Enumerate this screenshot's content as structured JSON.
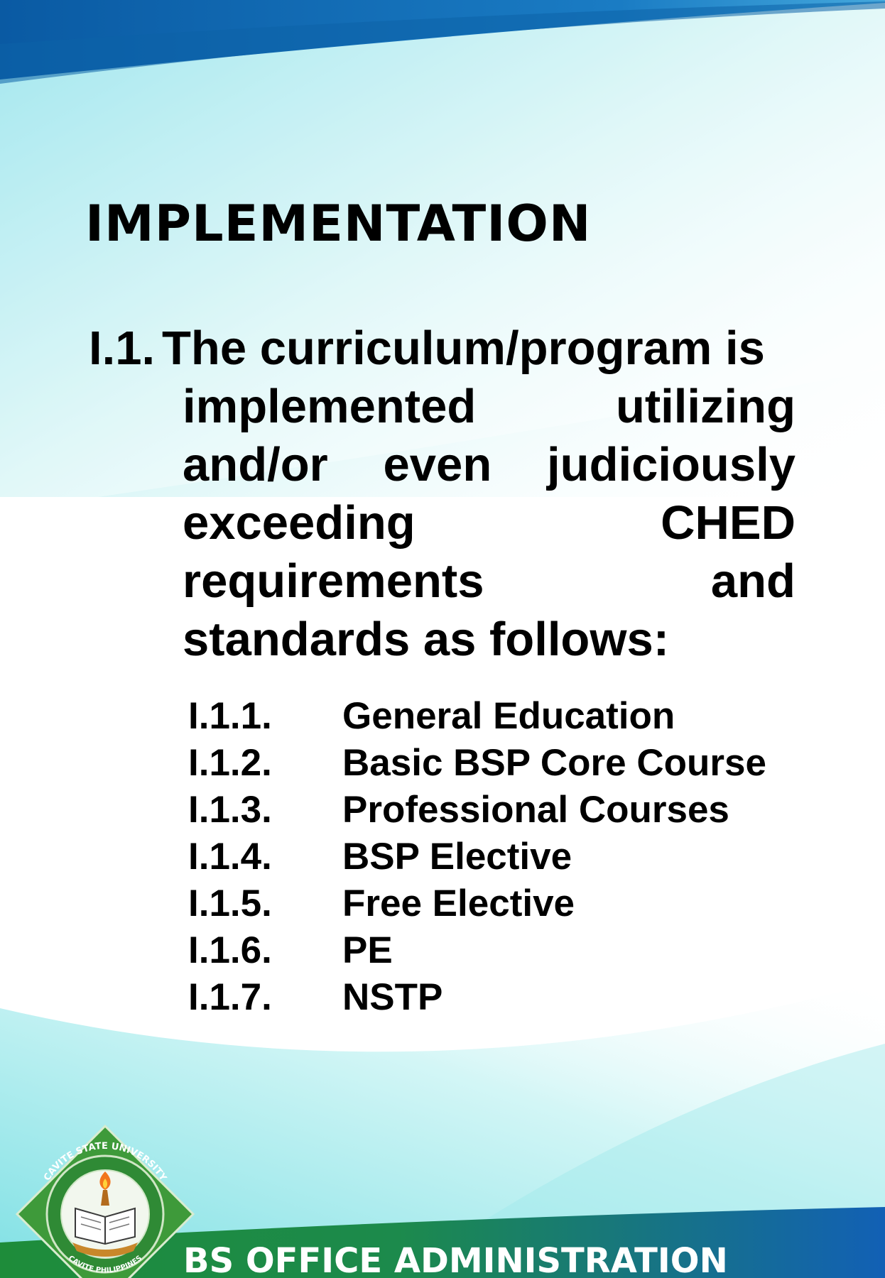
{
  "slide": {
    "title": "IMPLEMENTATION",
    "main_item": {
      "number": "I.1.",
      "first_line": "The curriculum/program is",
      "rest": "implemented utilizing and/or even judiciously exceeding CHED requirements and standards as follows:"
    },
    "sub_items": [
      {
        "number": "I.1.1.",
        "label": "General Education"
      },
      {
        "number": "I.1.2.",
        "label": "Basic BSP Core Course"
      },
      {
        "number": "I.1.3.",
        "label": "Professional Courses"
      },
      {
        "number": "I.1.4.",
        "label": "BSP Elective"
      },
      {
        "number": "I.1.5.",
        "label": "Free Elective"
      },
      {
        "number": "I.1.6.",
        "label": "PE"
      },
      {
        "number": "I.1.7.",
        "label": "NSTP"
      }
    ],
    "footer": "BS OFFICE ADMINISTRATION",
    "logo": {
      "name": "seal-icon",
      "ring_text_top": "CAVITE STATE UNIVERSITY",
      "ring_text_bottom": "CAVITE PHILIPPINES"
    }
  },
  "colors": {
    "top_band": "#0a5ea8",
    "aqua": "#8fe6ea",
    "footer_green": "#1f8f3a",
    "footer_blue": "#1668b8",
    "seal_green": "#3e9a3a"
  }
}
